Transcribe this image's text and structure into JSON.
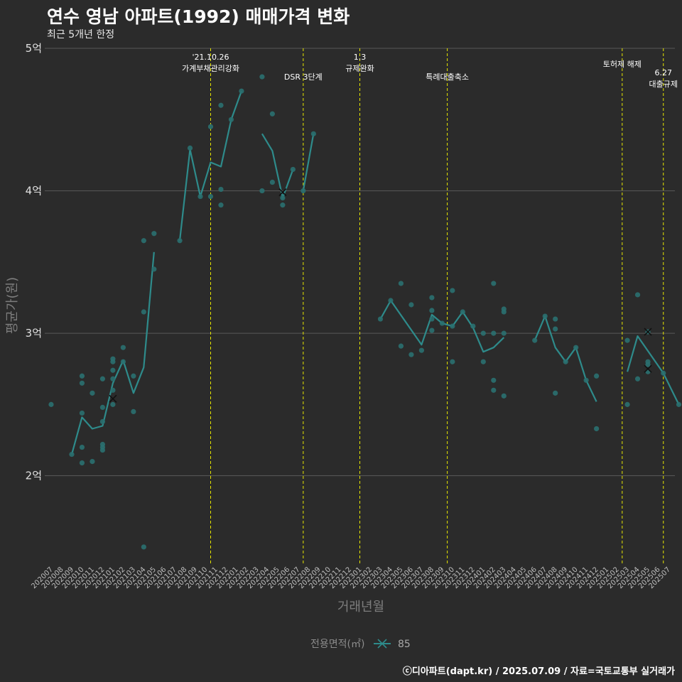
{
  "title": "연수 영남 아파트(1992) 매매가격 변화",
  "subtitle": "최근 5개년 한정",
  "credit": "ⓒ디아파트(dapt.kr) / 2025.07.09 / 자료=국토교통부 실거래가",
  "colors": {
    "background": "#2b2b2b",
    "grid": "#5a5a5a",
    "series": "#2e8b8b",
    "point": "#2a7070",
    "event_line": "#e8e800"
  },
  "chart_data": {
    "type": "line",
    "title": "연수 영남 아파트(1992) 매매가격 변화",
    "xlabel": "거래년월",
    "ylabel": "평균가(원)",
    "ylim": [
      1.37,
      5.03
    ],
    "y_ticks": [
      {
        "value": 2,
        "label": "2억"
      },
      {
        "value": 3,
        "label": "3억"
      },
      {
        "value": 4,
        "label": "4억"
      },
      {
        "value": 5,
        "label": "5억"
      }
    ],
    "x_categories": [
      "202007",
      "202008",
      "202009",
      "202010",
      "202011",
      "202012",
      "202101",
      "202102",
      "202103",
      "202104",
      "202105",
      "202106",
      "202107",
      "202108",
      "202109",
      "202110",
      "202111",
      "202112",
      "202201",
      "202202",
      "202203",
      "202204",
      "202205",
      "202206",
      "202207",
      "202208",
      "202209",
      "202210",
      "202211",
      "202212",
      "202301",
      "202302",
      "202303",
      "202304",
      "202305",
      "202306",
      "202307",
      "202308",
      "202309",
      "202310",
      "202311",
      "202312",
      "202401",
      "202402",
      "202403",
      "202404",
      "202405",
      "202406",
      "202407",
      "202408",
      "202409",
      "202410",
      "202411",
      "202412",
      "202501",
      "202502",
      "202503",
      "202504",
      "202505",
      "202506",
      "202507"
    ],
    "legend": {
      "title": "전용면적(㎡)",
      "label": "85"
    },
    "series": [
      {
        "name": "85",
        "line_segments": [
          [
            [
              2.0,
              2.15
            ],
            [
              3.0,
              2.41
            ],
            [
              4.0,
              2.33
            ],
            [
              5.0,
              2.35
            ],
            [
              6.0,
              2.65
            ],
            [
              7.0,
              2.81
            ],
            [
              8.0,
              2.58
            ],
            [
              9.0,
              2.76
            ],
            [
              10.0,
              3.57
            ]
          ],
          [
            [
              12.5,
              3.65
            ],
            [
              13.5,
              4.29
            ],
            [
              14.5,
              3.96
            ],
            [
              15.5,
              4.2
            ],
            [
              16.5,
              4.17
            ],
            [
              17.5,
              4.5
            ],
            [
              18.5,
              4.7
            ]
          ],
          [
            [
              20.5,
              4.4
            ],
            [
              21.5,
              4.28
            ],
            [
              22.5,
              3.95
            ],
            [
              23.5,
              4.15
            ]
          ],
          [
            [
              24.5,
              4.0
            ],
            [
              25.5,
              4.4
            ]
          ],
          [
            [
              32.0,
              3.1
            ],
            [
              33.0,
              3.23
            ],
            [
              36.0,
              2.92
            ],
            [
              37.0,
              3.13
            ],
            [
              38.0,
              3.07
            ],
            [
              39.0,
              3.05
            ],
            [
              40.0,
              3.15
            ],
            [
              41.0,
              3.04
            ],
            [
              42.0,
              2.87
            ],
            [
              43.0,
              2.9
            ],
            [
              44.0,
              2.97
            ]
          ],
          [
            [
              47.0,
              2.95
            ],
            [
              48.0,
              3.12
            ],
            [
              49.0,
              2.9
            ],
            [
              50.0,
              2.8
            ],
            [
              51.0,
              2.9
            ],
            [
              52.0,
              2.67
            ],
            [
              53.0,
              2.52
            ]
          ],
          [
            [
              56.0,
              2.73
            ],
            [
              57.0,
              2.98
            ],
            [
              59.5,
              2.72
            ],
            [
              61.0,
              2.5
            ]
          ]
        ],
        "points": [
          [
            0.0,
            2.5
          ],
          [
            2.0,
            2.15
          ],
          [
            3.0,
            2.09
          ],
          [
            3.0,
            2.2
          ],
          [
            3.0,
            2.44
          ],
          [
            3.0,
            2.65
          ],
          [
            3.0,
            2.7
          ],
          [
            4.0,
            2.1
          ],
          [
            4.0,
            2.58
          ],
          [
            5.0,
            2.18
          ],
          [
            5.0,
            2.2
          ],
          [
            5.0,
            2.22
          ],
          [
            5.0,
            2.38
          ],
          [
            5.0,
            2.48
          ],
          [
            5.0,
            2.68
          ],
          [
            6.0,
            2.5
          ],
          [
            6.0,
            2.6
          ],
          [
            6.0,
            2.68
          ],
          [
            6.0,
            2.74
          ],
          [
            6.0,
            2.8
          ],
          [
            6.0,
            2.82
          ],
          [
            7.0,
            2.8
          ],
          [
            7.0,
            2.9
          ],
          [
            8.0,
            2.45
          ],
          [
            8.0,
            2.7
          ],
          [
            9.0,
            1.5
          ],
          [
            9.0,
            3.15
          ],
          [
            9.0,
            3.65
          ],
          [
            10.0,
            3.45
          ],
          [
            10.0,
            3.7
          ],
          [
            12.5,
            3.65
          ],
          [
            13.5,
            4.3
          ],
          [
            14.5,
            3.96
          ],
          [
            15.5,
            3.96
          ],
          [
            15.5,
            4.45
          ],
          [
            16.5,
            3.9
          ],
          [
            16.5,
            4.01
          ],
          [
            16.5,
            4.6
          ],
          [
            17.5,
            4.5
          ],
          [
            18.5,
            4.7
          ],
          [
            20.5,
            4.0
          ],
          [
            20.5,
            4.8
          ],
          [
            21.5,
            4.06
          ],
          [
            21.5,
            4.54
          ],
          [
            22.5,
            3.9
          ],
          [
            22.5,
            3.95
          ],
          [
            23.5,
            4.15
          ],
          [
            24.5,
            4.0
          ],
          [
            25.5,
            4.4
          ],
          [
            32.0,
            3.1
          ],
          [
            33.0,
            3.23
          ],
          [
            34.0,
            2.91
          ],
          [
            34.0,
            3.35
          ],
          [
            35.0,
            2.85
          ],
          [
            35.0,
            3.2
          ],
          [
            36.0,
            2.88
          ],
          [
            37.0,
            3.02
          ],
          [
            37.0,
            3.1
          ],
          [
            37.0,
            3.16
          ],
          [
            37.0,
            3.25
          ],
          [
            38.0,
            3.07
          ],
          [
            39.0,
            2.8
          ],
          [
            39.0,
            3.05
          ],
          [
            39.0,
            3.3
          ],
          [
            40.0,
            3.15
          ],
          [
            41.0,
            3.05
          ],
          [
            42.0,
            2.8
          ],
          [
            42.0,
            3.0
          ],
          [
            43.0,
            2.6
          ],
          [
            43.0,
            2.67
          ],
          [
            43.0,
            3.0
          ],
          [
            43.0,
            3.35
          ],
          [
            44.0,
            2.56
          ],
          [
            44.0,
            3.0
          ],
          [
            44.0,
            3.15
          ],
          [
            44.0,
            3.17
          ],
          [
            47.0,
            2.95
          ],
          [
            48.0,
            3.12
          ],
          [
            49.0,
            2.58
          ],
          [
            49.0,
            3.03
          ],
          [
            49.0,
            3.1
          ],
          [
            50.0,
            2.8
          ],
          [
            51.0,
            2.9
          ],
          [
            52.0,
            2.67
          ],
          [
            53.0,
            2.33
          ],
          [
            53.0,
            2.7
          ],
          [
            56.0,
            2.5
          ],
          [
            56.0,
            2.95
          ],
          [
            57.0,
            2.68
          ],
          [
            57.0,
            3.27
          ],
          [
            58.0,
            2.73
          ],
          [
            58.0,
            2.78
          ],
          [
            58.0,
            2.8
          ],
          [
            58.0,
            3.01
          ],
          [
            59.5,
            2.72
          ],
          [
            61.0,
            2.5
          ]
        ],
        "x_markers": [
          [
            6.0,
            2.54
          ],
          [
            22.5,
            3.99
          ],
          [
            58.0,
            3.01
          ],
          [
            58.0,
            2.75
          ]
        ]
      }
    ],
    "events": [
      {
        "x": 15.5,
        "lines": [
          "'21.10.26",
          "가계부채관리강화"
        ],
        "label_y": [
          4.92,
          4.84
        ]
      },
      {
        "x": 24.5,
        "lines": [
          "DSR 3단계"
        ],
        "label_y": [
          4.78
        ]
      },
      {
        "x": 30.0,
        "lines": [
          "1.3",
          "규제완화"
        ],
        "label_y": [
          4.92,
          4.84
        ]
      },
      {
        "x": 38.5,
        "lines": [
          "특례대출축소"
        ],
        "label_y": [
          4.78
        ]
      },
      {
        "x": 55.5,
        "lines": [
          "토허제 해제"
        ],
        "label_y": [
          4.87
        ]
      },
      {
        "x": 59.5,
        "lines": [
          "6.27",
          "대출규제"
        ],
        "label_y": [
          4.81,
          4.73
        ]
      }
    ]
  }
}
